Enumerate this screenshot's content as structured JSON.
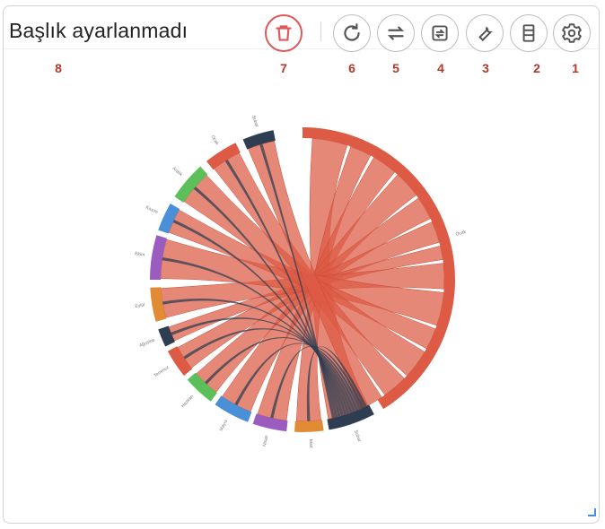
{
  "header": {
    "title": "Başlık ayarlanmadı"
  },
  "toolbar": {
    "buttons": [
      {
        "name": "delete",
        "icon": "trash-icon",
        "marker": "7"
      },
      {
        "name": "refresh",
        "icon": "refresh-icon",
        "marker": "6"
      },
      {
        "name": "swap",
        "icon": "swap-icon",
        "marker": "5"
      },
      {
        "name": "export",
        "icon": "export-icon",
        "marker": "4"
      },
      {
        "name": "tools",
        "icon": "wrench-icon",
        "marker": "3"
      },
      {
        "name": "data-table",
        "icon": "table-icon",
        "marker": "2"
      },
      {
        "name": "settings",
        "icon": "gear-icon",
        "marker": "1"
      }
    ],
    "title_marker": "8",
    "accent_color": "#e0585a",
    "marker_color": "#b23a2a"
  },
  "chart_data": {
    "type": "chord",
    "nodes": [
      {
        "name": "Ocak",
        "color": "#dd5a44"
      },
      {
        "name": "Şubat",
        "color": "#2e3d52"
      },
      {
        "name": "Mart",
        "color": "#e28b35"
      },
      {
        "name": "Nisan",
        "color": "#9b5cc0"
      },
      {
        "name": "Mayıs",
        "color": "#4a90d9"
      },
      {
        "name": "Haziran",
        "color": "#5cc05a"
      },
      {
        "name": "Temmuz",
        "color": "#dd5a44"
      },
      {
        "name": "Ağustos",
        "color": "#2e3d52"
      },
      {
        "name": "Eylül",
        "color": "#e28b35"
      },
      {
        "name": "Ekim",
        "color": "#9b5cc0"
      },
      {
        "name": "Kasım",
        "color": "#4a90d9"
      },
      {
        "name": "Aralık",
        "color": "#5cc05a"
      },
      {
        "name": "Ocak ",
        "color": "#dd5a44"
      },
      {
        "name": "Şubat ",
        "color": "#2e3d52"
      }
    ]
  }
}
